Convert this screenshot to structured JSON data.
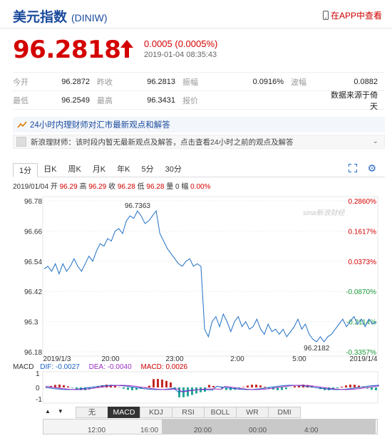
{
  "header": {
    "title": "美元指数",
    "code": "(DINIW)",
    "app_link": "在APP中查看"
  },
  "quote": {
    "price": "96.2818",
    "change": "0.0005 (0.0005%)",
    "time": "2019-01-04 08:35:43"
  },
  "stats": {
    "rows": [
      [
        [
          "今开",
          "96.2872"
        ],
        [
          "昨收",
          "96.2813"
        ],
        [
          "振幅",
          "0.0916%"
        ],
        [
          "波幅",
          "0.0882"
        ]
      ],
      [
        [
          "最低",
          "96.2549"
        ],
        [
          "最高",
          "96.3431"
        ],
        [
          "报价",
          ""
        ],
        [
          "",
          "数据来源于倚天"
        ]
      ]
    ]
  },
  "news": {
    "headline": "24小时内理财师对汇市最新观点和解答",
    "line": "新浪理财师：该时段内暂无最新观点及解答，点击查看24小时之前的观点及解答"
  },
  "tabs": [
    "1分",
    "日K",
    "周K",
    "月K",
    "年K",
    "5分",
    "30分"
  ],
  "ohlc": {
    "date": "2019/01/04",
    "open_label": "开",
    "open": "96.29",
    "high_label": "高",
    "high": "96.29",
    "close_label": "收",
    "close": "96.28",
    "low_label": "低",
    "low": "96.28",
    "vol_label": "量",
    "vol": "0",
    "amp_label": "幅",
    "amp": "0.00%"
  },
  "chart_data": {
    "type": "line",
    "y_ticks": [
      "96.78",
      "96.66",
      "96.54",
      "96.42",
      "96.3",
      "96.18"
    ],
    "y_pct_ticks": [
      "0.2860%",
      "0.1617%",
      "0.0373%",
      "-0.0870%",
      "-0.2114%",
      "-0.3357%"
    ],
    "x_ticks": [
      "2019/1/3",
      "20:00",
      "23:00",
      "2:00",
      "5:00",
      "2019/1/4"
    ],
    "ylim": [
      96.18,
      96.78
    ],
    "annotations": [
      "96.7363",
      "96.2182"
    ],
    "watermark": "sina新浪财经",
    "series": [
      {
        "values": [
          96.51,
          96.52,
          96.5,
          96.53,
          96.49,
          96.53,
          96.5,
          96.52,
          96.55,
          96.52,
          96.5,
          96.53,
          96.56,
          96.54,
          96.58,
          96.61,
          96.6,
          96.63,
          96.62,
          96.66,
          96.67,
          96.65,
          96.7,
          96.72,
          96.71,
          96.74,
          96.72,
          96.69,
          96.7,
          96.72,
          96.74,
          96.65,
          96.62,
          96.59,
          96.57,
          96.55,
          96.53,
          96.52,
          96.54,
          96.55,
          96.52,
          96.53,
          96.52,
          96.27,
          96.24,
          96.3,
          96.32,
          96.28,
          96.33,
          96.3,
          96.26,
          96.3,
          96.32,
          96.28,
          96.3,
          96.27,
          96.28,
          96.31,
          96.27,
          96.25,
          96.29,
          96.26,
          96.27,
          96.25,
          96.27,
          96.24,
          96.26,
          96.28,
          96.31,
          96.27,
          96.29,
          96.25,
          96.23,
          96.22,
          96.24,
          96.22,
          96.24,
          96.25,
          96.27,
          96.29,
          96.31,
          96.28,
          96.3,
          96.32,
          96.29,
          96.31,
          96.28,
          96.31,
          96.29,
          96.3
        ]
      }
    ]
  },
  "macd": {
    "label": "MACD",
    "dif": "DIF: -0.0027",
    "dea": "DEA: -0.0040",
    "macd": "MACD: 0.0026",
    "y_ticks": [
      "1",
      "0",
      "-1"
    ]
  },
  "indicators": [
    "无",
    "MACD",
    "KDJ",
    "RSI",
    "BOLL",
    "WR",
    "DMI"
  ],
  "scroll_labels": [
    "12:00",
    "16:00",
    "20:00",
    "00:00",
    "4:00"
  ],
  "colors": {
    "price_up": "#d40000",
    "line": "#1f6fc4",
    "title": "#1a4a9c"
  }
}
